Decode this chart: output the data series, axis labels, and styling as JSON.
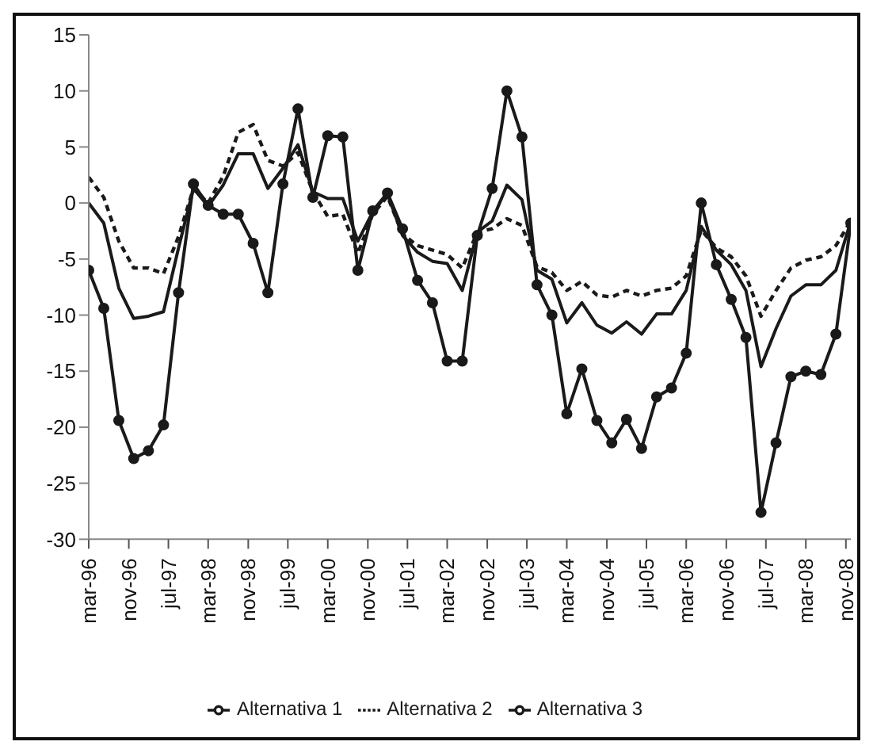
{
  "chart_data": {
    "type": "line",
    "x": [
      "1996-03",
      "1996-06",
      "1996-09",
      "1996-12",
      "1997-03",
      "1997-06",
      "1997-09",
      "1997-12",
      "1998-03",
      "1998-06",
      "1998-09",
      "1998-12",
      "1999-03",
      "1999-06",
      "1999-09",
      "1999-12",
      "2000-03",
      "2000-06",
      "2000-09",
      "2000-12",
      "2001-03",
      "2001-06",
      "2001-09",
      "2001-12",
      "2002-03",
      "2002-06",
      "2002-09",
      "2002-12",
      "2003-03",
      "2003-06",
      "2003-09",
      "2003-12",
      "2004-03",
      "2004-06",
      "2004-09",
      "2004-12",
      "2005-03",
      "2005-06",
      "2005-09",
      "2005-12",
      "2006-03",
      "2006-06",
      "2006-09",
      "2006-12",
      "2007-03",
      "2007-06",
      "2007-09",
      "2007-12",
      "2008-03",
      "2008-06",
      "2008-09",
      "2008-12"
    ],
    "series": [
      {
        "name": "Alternativa 1",
        "color": "#1a1a1a",
        "marker": "circle",
        "line_style": "solid",
        "values": [
          -6.0,
          -9.4,
          -19.4,
          -22.8,
          -22.1,
          -19.8,
          -8,
          1.7,
          -0.2,
          -1,
          -1,
          -3.6,
          -8,
          1.7,
          8.4,
          0.5,
          6,
          5.9,
          -6,
          -0.7,
          0.9,
          -2.3,
          -6.9,
          -8.9,
          -14.1,
          -14.1,
          -2.9,
          1.3,
          10,
          5.9,
          -7.3,
          -10,
          -18.8,
          -14.8,
          -19.4,
          -21.4,
          -19.3,
          -21.9,
          -17.3,
          -16.5,
          -13.4,
          0,
          -5.5,
          -8.6,
          -12,
          -27.6,
          -21.4,
          -15.5,
          -15,
          -15.3,
          -11.7,
          -1.8
        ]
      },
      {
        "name": "Alternativa 2",
        "color": "#1a1a1a",
        "marker": "none",
        "line_style": "dashed",
        "values": [
          2.3,
          0.5,
          -3.4,
          -5.8,
          -5.8,
          -6.3,
          -3,
          1.3,
          0,
          2.4,
          6.3,
          7,
          3.8,
          3.3,
          4.5,
          1,
          -1.2,
          -1,
          -4.5,
          -1,
          0.6,
          -2.8,
          -3.8,
          -4.2,
          -4.6,
          -5.8,
          -2.6,
          -2.3,
          -1.4,
          -2,
          -5.7,
          -6.2,
          -7.8,
          -7,
          -8.2,
          -8.4,
          -7.8,
          -8.3,
          -7.8,
          -7.6,
          -6.5,
          -2.4,
          -4,
          -4.8,
          -6.5,
          -10.1,
          -7.8,
          -5.8,
          -5.1,
          -4.8,
          -3.8,
          -1.6
        ]
      },
      {
        "name": "Alternativa 3",
        "color": "#1a1a1a",
        "marker": "none",
        "line_style": "solid",
        "values": [
          0,
          -1.8,
          -7.6,
          -10.3,
          -10.1,
          -9.7,
          -4,
          1.3,
          -0.3,
          1.6,
          4.4,
          4.4,
          1.3,
          3.1,
          5.2,
          1,
          0.4,
          0.4,
          -3.4,
          -0.8,
          0.8,
          -2.9,
          -4.4,
          -5.2,
          -5.4,
          -7.8,
          -2.6,
          -1.6,
          1.6,
          0.3,
          -6,
          -6.8,
          -10.7,
          -8.9,
          -10.9,
          -11.6,
          -10.6,
          -11.7,
          -9.9,
          -9.9,
          -7.8,
          -2.1,
          -4.2,
          -5.5,
          -7.8,
          -14.6,
          -11.2,
          -8.3,
          -7.3,
          -7.3,
          -6,
          -1.6
        ]
      }
    ],
    "xlim": [
      "1996-03",
      "2008-12"
    ],
    "xticks": [
      {
        "value": "1996-03",
        "label": "mar-96"
      },
      {
        "value": "1996-11",
        "label": "nov-96"
      },
      {
        "value": "1997-07",
        "label": "jul-97"
      },
      {
        "value": "1998-03",
        "label": "mar-98"
      },
      {
        "value": "1998-11",
        "label": "nov-98"
      },
      {
        "value": "1999-07",
        "label": "jul-99"
      },
      {
        "value": "2000-03",
        "label": "mar-00"
      },
      {
        "value": "2000-11",
        "label": "nov-00"
      },
      {
        "value": "2001-07",
        "label": "jul-01"
      },
      {
        "value": "2002-03",
        "label": "mar-02"
      },
      {
        "value": "2002-11",
        "label": "nov-02"
      },
      {
        "value": "2003-07",
        "label": "jul-03"
      },
      {
        "value": "2004-03",
        "label": "mar-04"
      },
      {
        "value": "2004-11",
        "label": "nov-04"
      },
      {
        "value": "2005-07",
        "label": "jul-05"
      },
      {
        "value": "2006-03",
        "label": "mar-06"
      },
      {
        "value": "2006-11",
        "label": "nov-06"
      },
      {
        "value": "2007-07",
        "label": "jul-07"
      },
      {
        "value": "2008-03",
        "label": "mar-08"
      },
      {
        "value": "2008-11",
        "label": "nov-08"
      }
    ],
    "ylim": [
      -30,
      15
    ],
    "yticks": [
      -30,
      -25,
      -20,
      -15,
      -10,
      -5,
      0,
      5,
      10,
      15
    ],
    "legend": "bottom"
  }
}
